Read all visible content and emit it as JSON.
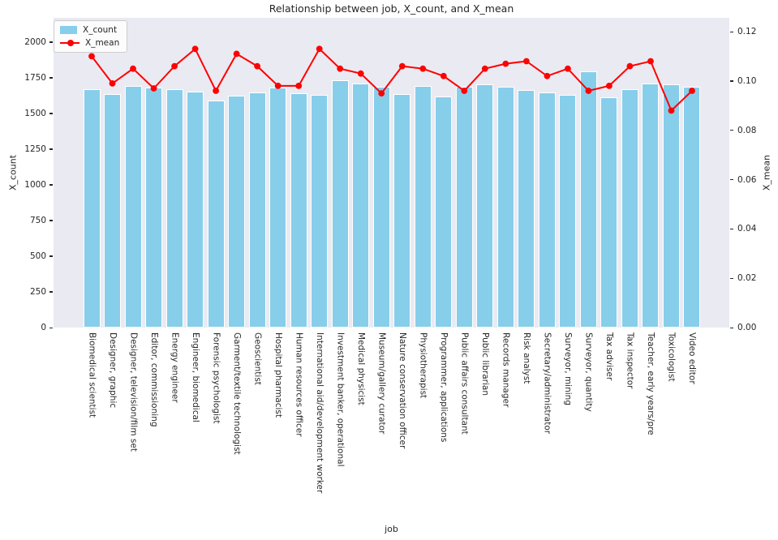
{
  "chart_data": {
    "type": "bar",
    "title": "Relationship between job, X_count, and X_mean",
    "xlabel": "job",
    "grid": false,
    "plot_background": "#eaeaf2",
    "legend": {
      "position": "upper-left"
    },
    "categories": [
      "Biomedical scientist",
      "Designer, graphic",
      "Designer, television/film set",
      "Editor, commissioning",
      "Energy engineer",
      "Engineer, biomedical",
      "Forensic psychologist",
      "Garment/textile technologist",
      "Geoscientist",
      "Hospital pharmacist",
      "Human resources officer",
      "International aid/development worker",
      "Investment banker, operational",
      "Medical physicist",
      "Museum/gallery curator",
      "Nature conservation officer",
      "Physiotherapist",
      "Programmer, applications",
      "Public affairs consultant",
      "Public librarian",
      "Records manager",
      "Risk analyst",
      "Secretary/administrator",
      "Surveyor, mining",
      "Surveyor, quantity",
      "Tax adviser",
      "Tax inspector",
      "Teacher, early years/pre",
      "Toxicologist",
      "Video editor"
    ],
    "series": [
      {
        "name": "X_count",
        "type": "bar",
        "axis": "left",
        "color": "#87ceeb",
        "values": [
          1670,
          1636,
          1693,
          1682,
          1670,
          1655,
          1591,
          1627,
          1650,
          1684,
          1640,
          1632,
          1735,
          1710,
          1685,
          1636,
          1695,
          1618,
          1688,
          1705,
          1686,
          1662,
          1648,
          1629,
          1795,
          1614,
          1670,
          1708,
          1705,
          1689
        ]
      },
      {
        "name": "X_mean",
        "type": "line",
        "axis": "right",
        "color": "#ff0000",
        "values": [
          0.11,
          0.099,
          0.105,
          0.097,
          0.106,
          0.113,
          0.096,
          0.111,
          0.106,
          0.098,
          0.098,
          0.113,
          0.105,
          0.103,
          0.095,
          0.106,
          0.105,
          0.102,
          0.096,
          0.105,
          0.107,
          0.108,
          0.102,
          0.105,
          0.096,
          0.098,
          0.106,
          0.108,
          0.088,
          0.096
        ]
      }
    ],
    "left_axis": {
      "label": "X_count",
      "ticks": [
        0,
        250,
        500,
        750,
        1000,
        1250,
        1500,
        1750,
        2000
      ],
      "max": 2170
    },
    "right_axis": {
      "label": "X_mean",
      "ticks": [
        "0.00",
        "0.02",
        "0.04",
        "0.06",
        "0.08",
        "0.10",
        "0.12"
      ],
      "max": 0.1256
    }
  }
}
